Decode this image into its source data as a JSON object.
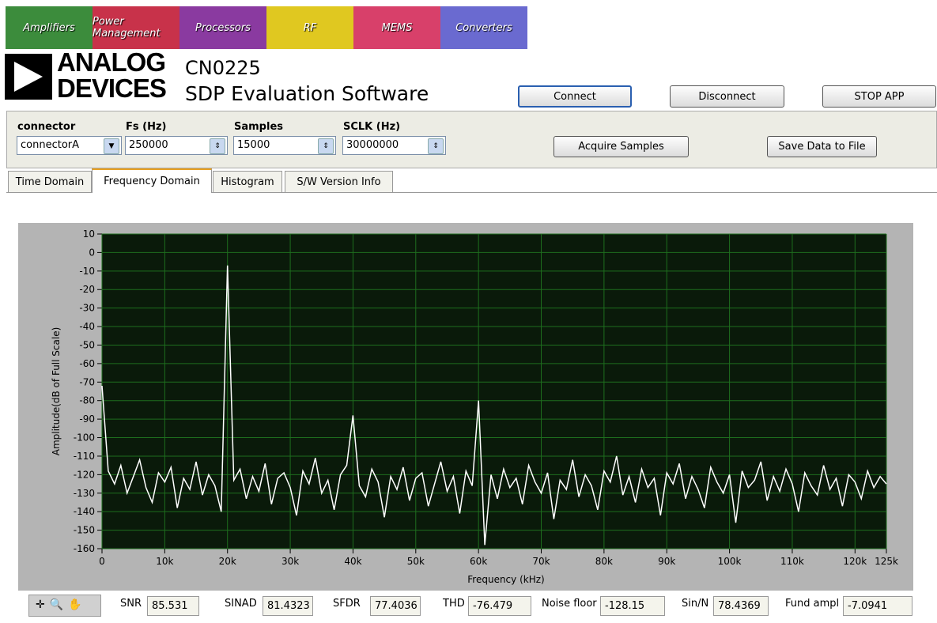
{
  "banner": [
    "Amplifiers",
    "Power Management",
    "Processors",
    "RF",
    "MEMS",
    "Converters"
  ],
  "logo": {
    "line1": "ANALOG",
    "line2": "DEVICES"
  },
  "header": {
    "code": "CN0225",
    "title": "SDP Evaluation Software"
  },
  "top_buttons": [
    "Connect",
    "Disconnect",
    "STOP APP"
  ],
  "controls": [
    {
      "label": "connector",
      "value": "connectorA"
    },
    {
      "label": "Fs (Hz)",
      "value": 250000
    },
    {
      "label": "Samples",
      "value": 15000
    },
    {
      "label": "SCLK (Hz)",
      "value": 30000000
    }
  ],
  "action_buttons": [
    "Acquire Samples",
    "Save Data to File"
  ],
  "tabs": [
    "Time Domain",
    "Frequency Domain",
    "Histogram",
    "S/W Version Info"
  ],
  "chart_data": {
    "type": "line",
    "x_label": "Frequency (kHz)",
    "y_label": "Amplitude(dB of Full Scale)",
    "color": "#ffffff",
    "background": "#0a1a0a",
    "grid_color": "#1e6e1e",
    "grid": true,
    "x": [
      0,
      1000,
      2000,
      3000,
      4000,
      5000,
      6000,
      7000,
      8000,
      9000,
      10000,
      11000,
      12000,
      13000,
      14000,
      15000,
      16000,
      17000,
      18000,
      19000,
      20000,
      21000,
      22000,
      23000,
      24000,
      25000,
      26000,
      27000,
      28000,
      29000,
      30000,
      31000,
      32000,
      33000,
      34000,
      35000,
      36000,
      37000,
      38000,
      39000,
      40000,
      41000,
      42000,
      43000,
      44000,
      45000,
      46000,
      47000,
      48000,
      49000,
      50000,
      51000,
      52000,
      53000,
      54000,
      55000,
      56000,
      57000,
      58000,
      59000,
      60000,
      61000,
      62000,
      63000,
      64000,
      65000,
      66000,
      67000,
      68000,
      69000,
      70000,
      71000,
      72000,
      73000,
      74000,
      75000,
      76000,
      77000,
      78000,
      79000,
      80000,
      81000,
      82000,
      83000,
      84000,
      85000,
      86000,
      87000,
      88000,
      89000,
      90000,
      91000,
      92000,
      93000,
      94000,
      95000,
      96000,
      97000,
      98000,
      99000,
      100000,
      101000,
      102000,
      103000,
      104000,
      105000,
      106000,
      107000,
      108000,
      109000,
      110000,
      111000,
      112000,
      113000,
      114000,
      115000,
      116000,
      117000,
      118000,
      119000,
      120000,
      121000,
      122000,
      123000,
      124000,
      125000
    ],
    "values": [
      -72,
      -118,
      -125,
      -115,
      -130,
      -121,
      -112,
      -127,
      -135,
      -119,
      -124,
      -116,
      -138,
      -122,
      -128,
      -113,
      -131,
      -120,
      -126,
      -140,
      -7,
      -123,
      -117,
      -133,
      -121,
      -129,
      -114,
      -136,
      -122,
      -119,
      -127,
      -142,
      -118,
      -125,
      -111,
      -130,
      -123,
      -139,
      -120,
      -115,
      -88,
      -126,
      -132,
      -117,
      -124,
      -143,
      -121,
      -128,
      -116,
      -134,
      -122,
      -119,
      -137,
      -125,
      -113,
      -129,
      -121,
      -141,
      -118,
      -126,
      -80,
      -158,
      -120,
      -133,
      -117,
      -127,
      -122,
      -136,
      -115,
      -124,
      -130,
      -119,
      -144,
      -123,
      -128,
      -112,
      -132,
      -120,
      -126,
      -139,
      -118,
      -124,
      -110,
      -131,
      -121,
      -135,
      -117,
      -127,
      -122,
      -142,
      -119,
      -125,
      -114,
      -133,
      -121,
      -128,
      -138,
      -116,
      -124,
      -130,
      -120,
      -146,
      -118,
      -127,
      -123,
      -113,
      -134,
      -121,
      -129,
      -117,
      -125,
      -140,
      -119,
      -126,
      -131,
      -115,
      -128,
      -122,
      -137,
      -120,
      -124,
      -133,
      -118,
      -127,
      -121,
      -125
    ],
    "xlim": [
      0,
      125000
    ],
    "xticks": [
      0,
      {
        "value": 10000,
        "label": "10k"
      },
      {
        "value": 20000,
        "label": "20k"
      },
      {
        "value": 30000,
        "label": "30k"
      },
      {
        "value": 40000,
        "label": "40k"
      },
      {
        "value": 50000,
        "label": "50k"
      },
      {
        "value": 60000,
        "label": "60k"
      },
      {
        "value": 70000,
        "label": "70k"
      },
      {
        "value": 80000,
        "label": "80k"
      },
      {
        "value": 90000,
        "label": "90k"
      },
      {
        "value": 100000,
        "label": "100k"
      },
      {
        "value": 110000,
        "label": "110k"
      },
      {
        "value": 120000,
        "label": "120k"
      },
      {
        "value": 125000,
        "label": "125k"
      }
    ],
    "ylim": [
      -160,
      10
    ],
    "yticks": [
      -160,
      -150,
      -140,
      -130,
      -120,
      -110,
      -100,
      -90,
      -80,
      -70,
      -60,
      -50,
      -40,
      -30,
      -20,
      -10,
      0,
      10
    ]
  },
  "stats": [
    {
      "name": "SNR",
      "value": 85.531
    },
    {
      "name": "SINAD",
      "value": 81.4323
    },
    {
      "name": "SFDR",
      "value": 77.4036
    },
    {
      "name": "THD",
      "value": -76.479
    },
    {
      "name": "Noise floor",
      "value": -128.15
    },
    {
      "name": "Sin/N",
      "value": 78.4369
    },
    {
      "name": "Fund ampl",
      "value": -7.0941
    }
  ]
}
